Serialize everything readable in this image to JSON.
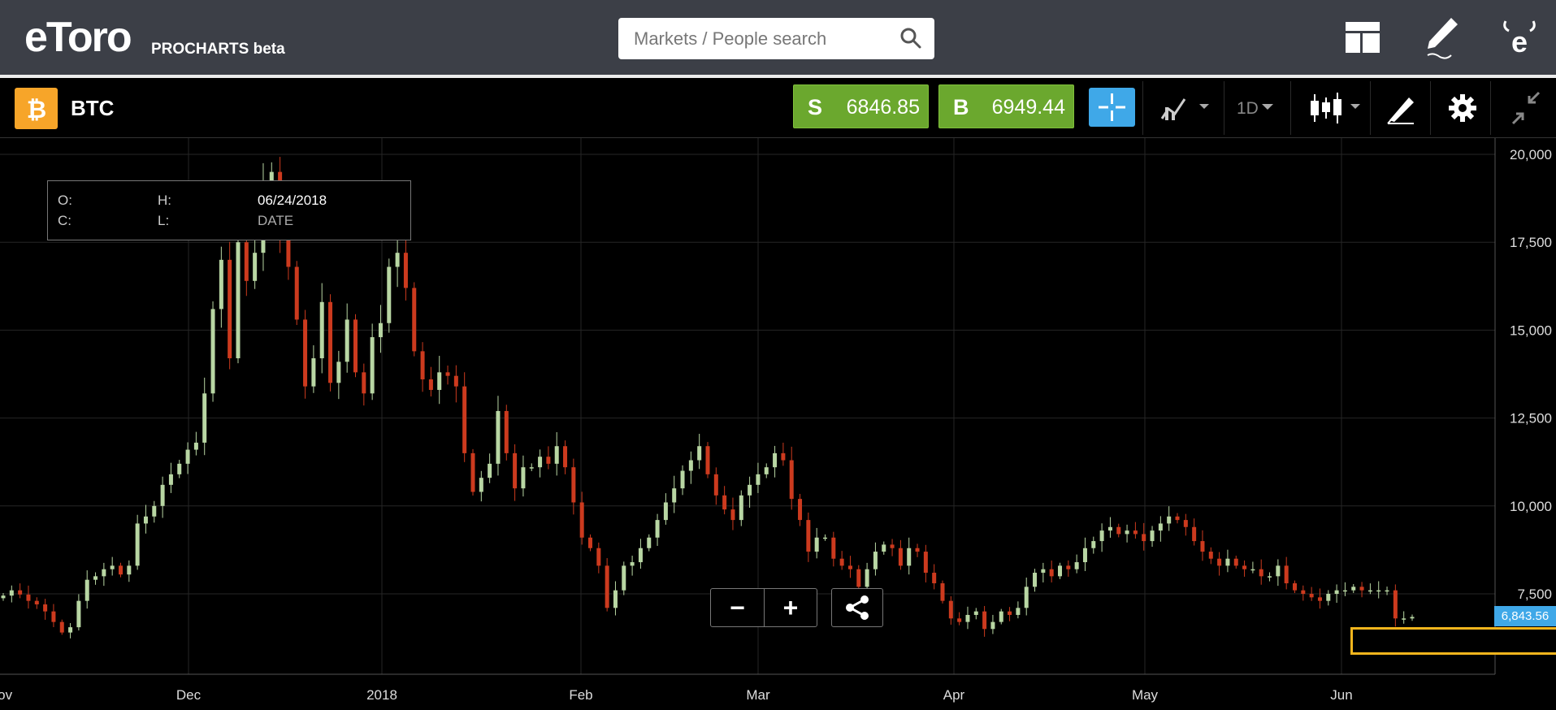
{
  "header": {
    "logo_text": "eToro",
    "logo_subtitle": "PROCHARTS beta",
    "search_placeholder": "Markets / People search",
    "icons": [
      "search-icon",
      "layout-icon",
      "edit-icon",
      "etoro-e-icon"
    ]
  },
  "instrument": {
    "symbol": "BTC",
    "icon": "bitcoin-icon",
    "sell_label": "S",
    "sell_price": "6846.85",
    "buy_label": "B",
    "buy_price": "6949.44",
    "interval": "1D"
  },
  "toolbar_icons": [
    "crosshair-icon",
    "indicators-icon",
    "candlestick-type-icon",
    "drawing-tools-icon",
    "gear-icon",
    "collapse-icon"
  ],
  "colors": {
    "up_candle": "#b8d6a3",
    "down_candle": "#cc3a1e",
    "buy_sell_green": "#6ba82e",
    "crosshair_blue": "#3fa8e8",
    "price_tag_blue": "#3fa8e8",
    "highlight_yellow": "#f2b51d",
    "btc_orange": "#f7a529"
  },
  "ohlc_box": {
    "o_label": "O:",
    "h_label": "H:",
    "c_label": "C:",
    "l_label": "L:",
    "date": "06/24/2018",
    "date_label": "DATE"
  },
  "chart_controls": {
    "zoom_out": "−",
    "zoom_in": "+",
    "share_icon": "share-icon"
  },
  "chart_data": {
    "type": "candlestick",
    "y_ticks": [
      "20,000",
      "17,500",
      "15,000",
      "12,500",
      "10,000",
      "7,500"
    ],
    "x_ticks": [
      "Nov",
      "Dec",
      "2018",
      "Feb",
      "Mar",
      "Apr",
      "May",
      "Jun"
    ],
    "ylim": [
      5000,
      20500
    ],
    "last_price_label": "6,843.56",
    "close_series": [
      7450,
      7600,
      7480,
      7300,
      7200,
      7000,
      6700,
      6400,
      6550,
      7300,
      7900,
      8000,
      8200,
      8300,
      8050,
      8300,
      9500,
      9700,
      10000,
      10600,
      10900,
      11200,
      11600,
      11800,
      13200,
      15600,
      17000,
      14200,
      17500,
      16400,
      17200,
      19100,
      19500,
      17800,
      16800,
      15300,
      13400,
      14200,
      15800,
      13500,
      14100,
      15300,
      13800,
      13200,
      14800,
      15200,
      16800,
      17200,
      16200,
      14400,
      13600,
      13300,
      13800,
      13700,
      13400,
      11500,
      10400,
      10800,
      11200,
      12700,
      11500,
      10500,
      11100,
      11100,
      11400,
      11200,
      11700,
      11100,
      10100,
      9100,
      8800,
      8300,
      7100,
      7600,
      8300,
      8400,
      8800,
      9100,
      9600,
      10100,
      10500,
      11000,
      11300,
      11700,
      10900,
      10300,
      9900,
      9600,
      10300,
      10600,
      10900,
      11100,
      11500,
      11300,
      10200,
      9600,
      8700,
      9100,
      9100,
      8500,
      8300,
      8200,
      7700,
      8200,
      8700,
      8900,
      8800,
      8300,
      8800,
      8700,
      8100,
      7800,
      7300,
      6800,
      6700,
      6900,
      7000,
      6500,
      6700,
      7000,
      6900,
      7100,
      7700,
      8100,
      8200,
      8000,
      8300,
      8200,
      8400,
      8800,
      9000,
      9300,
      9400,
      9200,
      9300,
      9200,
      9000,
      9300,
      9500,
      9700,
      9600,
      9400,
      9000,
      8700,
      8500,
      8300,
      8500,
      8300,
      8200,
      8200,
      8000,
      8000,
      8300,
      7800,
      7600,
      7500,
      7400,
      7300,
      7500,
      7600,
      7600,
      7700,
      7600,
      7600,
      7600,
      7600,
      6800,
      6800,
      6843
    ]
  }
}
